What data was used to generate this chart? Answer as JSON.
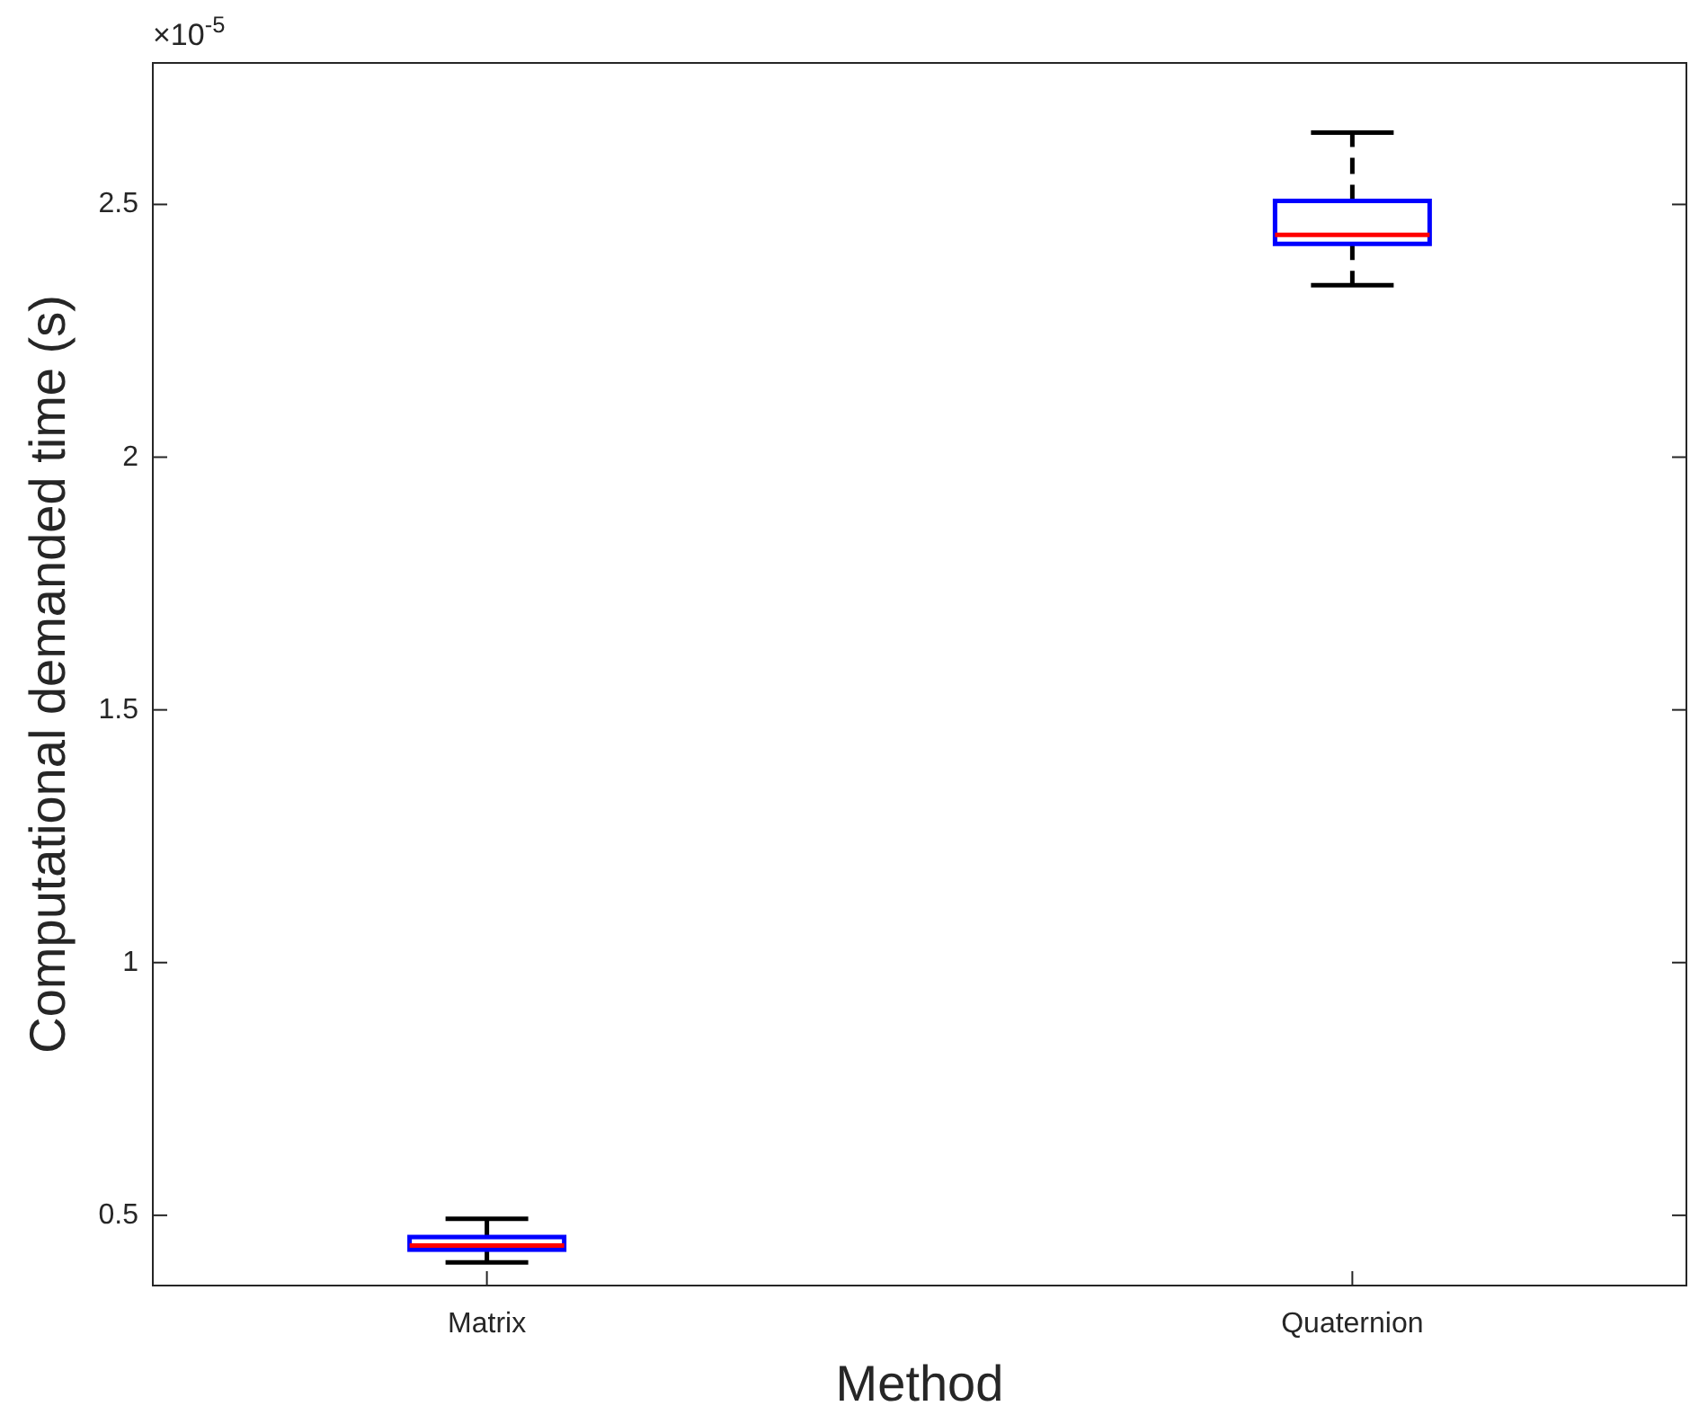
{
  "chart_data": {
    "type": "box",
    "xlabel": "Method",
    "ylabel": "Computational demanded time (s)",
    "categories": [
      "Matrix",
      "Quaternion"
    ],
    "boxes": [
      {
        "low": 0.407,
        "q1": 0.432,
        "median": 0.44,
        "q3": 0.457,
        "high": 0.493
      },
      {
        "low": 2.34,
        "q1": 2.422,
        "median": 2.44,
        "q3": 2.507,
        "high": 2.642
      }
    ],
    "color": "#0000ff",
    "line_style": "dashed",
    "ylim": [
      0.361,
      2.78
    ],
    "yticks": [
      0.5,
      1,
      1.5,
      2,
      2.5
    ],
    "annotations": [
      "×10$^{-5}$"
    ],
    "grid": false
  }
}
